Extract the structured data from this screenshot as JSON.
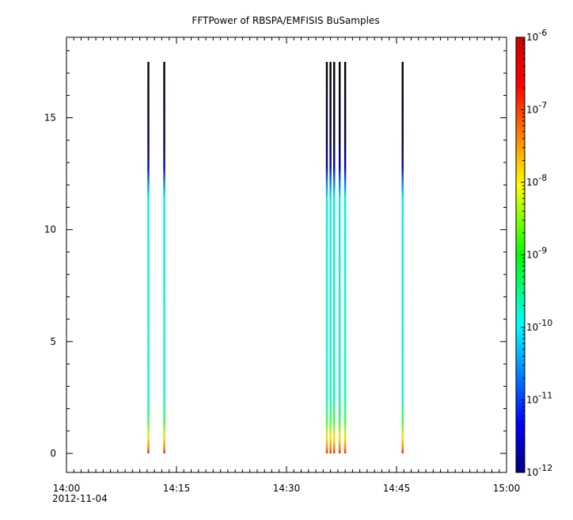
{
  "chart_data": {
    "type": "heatmap",
    "title": "FFTPower of RBSPA/EMFISIS  BuSamples",
    "xlabel": "",
    "ylabel": "",
    "x_range": [
      "14:00",
      "15:00"
    ],
    "x_ticks": [
      "14:00",
      "14:15",
      "14:30",
      "14:45",
      "15:00"
    ],
    "x_date_label": "2012-11-04",
    "ylim": [
      -0.85,
      18.6
    ],
    "y_ticks": [
      0,
      5,
      10,
      15
    ],
    "colorbar": {
      "scale": "log",
      "range": [
        1e-12,
        1e-06
      ],
      "colormap": "rainbow",
      "ticks": [
        {
          "base": "10",
          "exp": "-6"
        },
        {
          "base": "10",
          "exp": "-7"
        },
        {
          "base": "10",
          "exp": "-8"
        },
        {
          "base": "10",
          "exp": "-9"
        },
        {
          "base": "10",
          "exp": "-10"
        },
        {
          "base": "10",
          "exp": "-11"
        },
        {
          "base": "10",
          "exp": "-12"
        }
      ]
    },
    "grid": false,
    "series": [
      {
        "time": "14:11:10",
        "freq_range": [
          0,
          17.5
        ]
      },
      {
        "time": "14:13:20",
        "freq_range": [
          0,
          17.5
        ]
      },
      {
        "time": "14:35:30",
        "freq_range": [
          0,
          17.5
        ]
      },
      {
        "time": "14:36:00",
        "freq_range": [
          0,
          17.5
        ]
      },
      {
        "time": "14:36:30",
        "freq_range": [
          0,
          17.5
        ]
      },
      {
        "time": "14:37:15",
        "freq_range": [
          0,
          17.5
        ]
      },
      {
        "time": "14:38:00",
        "freq_range": [
          0,
          17.5
        ]
      },
      {
        "time": "14:45:50",
        "freq_range": [
          0,
          17.5
        ]
      }
    ]
  }
}
